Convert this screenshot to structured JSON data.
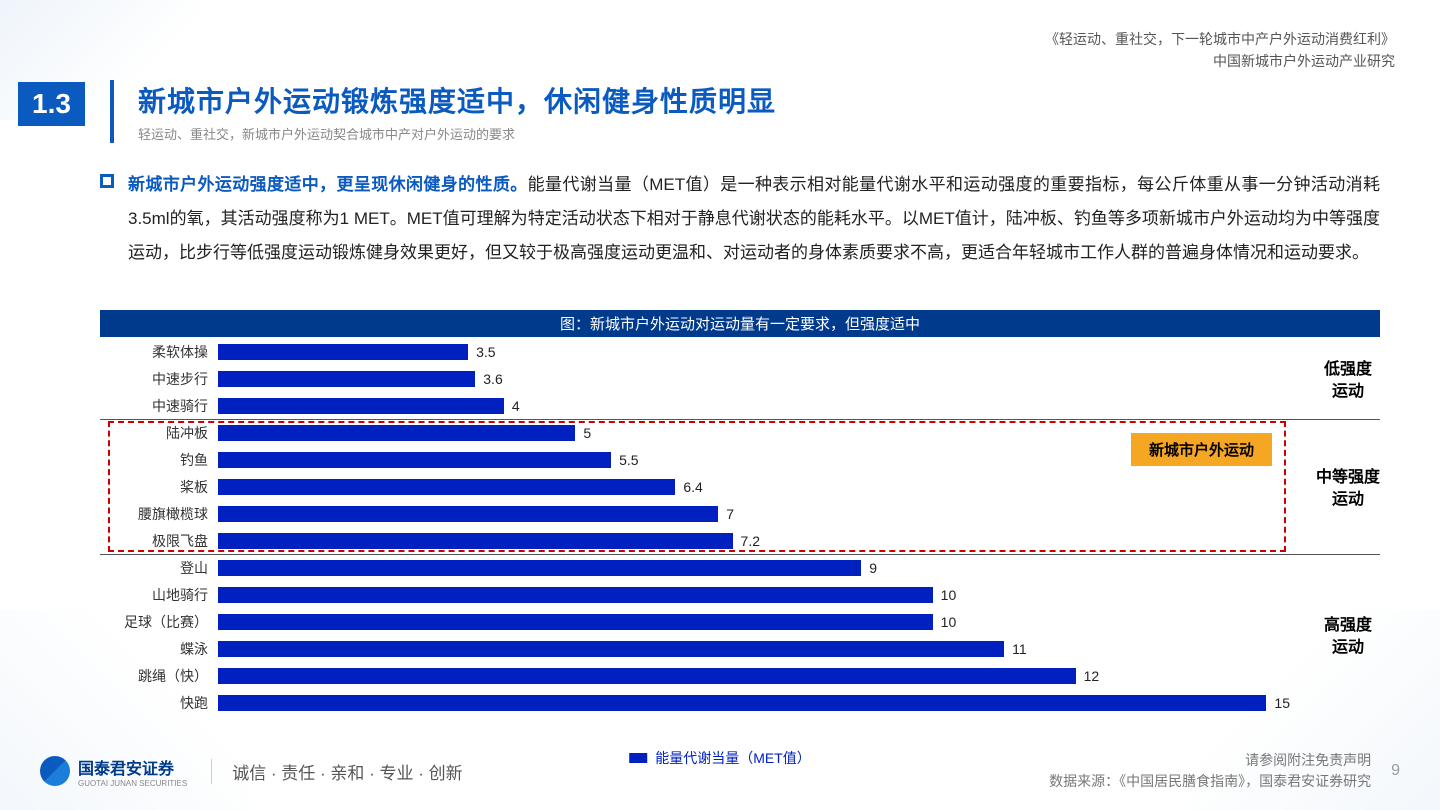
{
  "header": {
    "line1": "《轻运动、重社交，下一轮城市中产户外运动消费红利》",
    "line2": "中国新城市户外运动产业研究"
  },
  "section_number": "1.3",
  "title": "新城市户外运动锻炼强度适中，休闲健身性质明显",
  "subtitle": "轻运动、重社交，新城市户外运动契合城市中产对户外运动的要求",
  "body_lead": "新城市户外运动强度适中，更呈现休闲健身的性质。",
  "body_rest": "能量代谢当量（MET值）是一种表示相对能量代谢水平和运动强度的重要指标，每公斤体重从事一分钟活动消耗3.5ml的氧，其活动强度称为1  MET。MET值可理解为特定活动状态下相对于静息代谢状态的能耗水平。以MET值计，陆冲板、钓鱼等多项新城市户外运动均为中等强度运动，比步行等低强度运动锻炼健身效果更好，但又较于极高强度运动更温和、对运动者的身体素质要求不高，更适合年轻城市工作人群的普遍身体情况和运动要求。",
  "chart": {
    "type": "bar",
    "title": "图：新城市户外运动对运动量有一定要求，但强度适中",
    "bar_color": "#0020c0",
    "title_bg": "#003a8c",
    "highlight_border": "#cc0000",
    "badge_bg": "#f5a623",
    "badge_text": "新城市户外运动",
    "x_max": 15,
    "groups": [
      {
        "label": "低强度运动",
        "rows": [
          {
            "name": "柔软体操",
            "value": 3.5
          },
          {
            "name": "中速步行",
            "value": 3.6
          },
          {
            "name": "中速骑行",
            "value": 4
          }
        ]
      },
      {
        "label": "中等强度运动",
        "highlight": true,
        "rows": [
          {
            "name": "陆冲板",
            "value": 5
          },
          {
            "name": "钓鱼",
            "value": 5.5
          },
          {
            "name": "桨板",
            "value": 6.4
          },
          {
            "name": "腰旗橄榄球",
            "value": 7
          },
          {
            "name": "极限飞盘",
            "value": 7.2
          }
        ]
      },
      {
        "label": "高强度运动",
        "rows": [
          {
            "name": "登山",
            "value": 9
          },
          {
            "name": "山地骑行",
            "value": 10
          },
          {
            "name": "足球（比赛）",
            "value": 10
          },
          {
            "name": "蝶泳",
            "value": 11
          },
          {
            "name": "跳绳（快）",
            "value": 12
          },
          {
            "name": "快跑",
            "value": 15
          }
        ]
      }
    ],
    "legend_label": "能量代谢当量（MET值）"
  },
  "footer": {
    "logo_name": "国泰君安证券",
    "logo_sub": "GUOTAI JUNAN SECURITIES",
    "motto": "诚信 · 责任 · 亲和 · 专业 · 创新",
    "disclaimer": "请参阅附注免责声明",
    "source": "数据来源：《中国居民膳食指南》，国泰君安证券研究",
    "page": "9"
  }
}
